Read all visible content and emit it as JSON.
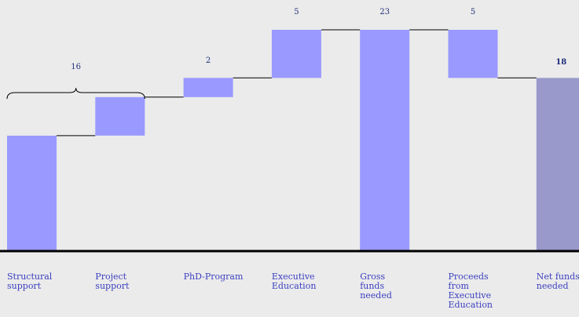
{
  "chart_data": {
    "type": "bar",
    "subtype": "waterfall",
    "title": "",
    "xlabel": "",
    "ylabel": "",
    "categories": [
      "Structural support",
      "Project support",
      "PhD-Program",
      "Executive Education",
      "Gross funds needed",
      "Proceeds from Executive Education",
      "Net funds needed"
    ],
    "steps": [
      {
        "category": "Structural support",
        "kind": "increase",
        "value": 12
      },
      {
        "category": "Project support",
        "kind": "increase",
        "value": 4
      },
      {
        "category": "PhD-Program",
        "kind": "increase",
        "value": 2
      },
      {
        "category": "Executive Education",
        "kind": "increase",
        "value": 5
      },
      {
        "category": "Gross funds needed",
        "kind": "total",
        "value": 23
      },
      {
        "category": "Proceeds from Executive Education",
        "kind": "decrease",
        "value": 5
      },
      {
        "category": "Net funds needed",
        "kind": "total",
        "value": 18
      }
    ],
    "value_labels": [
      "",
      "",
      "2",
      "5",
      "23",
      "5",
      "18"
    ],
    "brace_annotation": {
      "spans": [
        "Structural support",
        "Project support"
      ],
      "label": "16"
    },
    "ylim": [
      0,
      25
    ],
    "grid": false,
    "legend": "none",
    "colors": {
      "bar": "#9999ff",
      "total_final": "#9999cc",
      "connector": "#000000",
      "baseline": "#000000",
      "value_label": "#1f2f7a",
      "category_label": "#3b3fbf",
      "background": "#ebebeb"
    }
  }
}
